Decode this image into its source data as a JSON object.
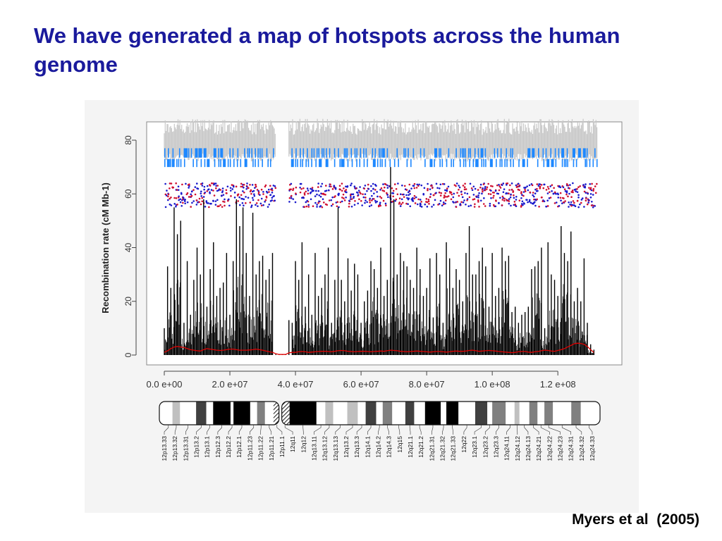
{
  "slide": {
    "title": "We have generated a map of hotspots across the human genome",
    "citation": "Myers et al  (2005)"
  },
  "chart_data": {
    "type": "line",
    "title": "",
    "xlabel": "",
    "ylabel": "Recombination rate (cM Mb-1)",
    "xlim": [
      0,
      132000000
    ],
    "ylim": [
      0,
      85
    ],
    "x_ticks": [
      0,
      20000000,
      40000000,
      60000000,
      80000000,
      100000000,
      120000000
    ],
    "x_tick_labels": [
      "0.0 e+00",
      "2.0 e+07",
      "4.0 e+07",
      "6.0 e+07",
      "8.0 e+07",
      "1.0 e+08",
      "1.2 e+08"
    ],
    "y_ticks": [
      0,
      20,
      40,
      60,
      80
    ],
    "y_tick_labels": [
      "0",
      "20",
      "40",
      "60",
      "80"
    ],
    "grid": false,
    "series": [
      {
        "color": "#000000",
        "x": [
          0,
          1000000,
          2000000,
          3000000,
          4000000,
          5000000,
          6000000,
          7000000,
          8000000,
          9000000,
          10000000,
          11000000,
          12000000,
          13000000,
          14000000,
          15000000,
          16000000,
          17000000,
          18000000,
          19000000,
          20000000,
          21000000,
          22000000,
          23000000,
          24000000,
          25000000,
          26000000,
          27000000,
          28000000,
          29000000,
          30000000,
          31000000,
          32000000,
          33000000,
          34000000,
          35000000,
          36000000,
          37000000,
          38000000,
          39000000,
          40000000,
          41000000,
          42000000,
          43000000,
          44000000,
          45000000,
          46000000,
          47000000,
          48000000,
          49000000,
          50000000,
          51000000,
          52000000,
          53000000,
          54000000,
          55000000,
          56000000,
          57000000,
          58000000,
          59000000,
          60000000,
          61000000,
          62000000,
          63000000,
          64000000,
          65000000,
          66000000,
          67000000,
          68000000,
          69000000,
          70000000,
          71000000,
          72000000,
          73000000,
          74000000,
          75000000,
          76000000,
          77000000,
          78000000,
          79000000,
          80000000,
          81000000,
          82000000,
          83000000,
          84000000,
          85000000,
          86000000,
          87000000,
          88000000,
          89000000,
          90000000,
          91000000,
          92000000,
          93000000,
          94000000,
          95000000,
          96000000,
          97000000,
          98000000,
          99000000,
          100000000,
          101000000,
          102000000,
          103000000,
          104000000,
          105000000,
          106000000,
          107000000,
          108000000,
          109000000,
          110000000,
          111000000,
          112000000,
          113000000,
          114000000,
          115000000,
          116000000,
          117000000,
          118000000,
          119000000,
          120000000,
          121000000,
          122000000,
          123000000,
          124000000,
          125000000,
          126000000,
          127000000,
          128000000,
          129000000,
          130000000,
          131000000
        ],
        "values": [
          10,
          33,
          25,
          55,
          45,
          50,
          12,
          35,
          15,
          28,
          40,
          30,
          58,
          18,
          32,
          42,
          22,
          25,
          27,
          38,
          15,
          35,
          58,
          48,
          55,
          38,
          22,
          53,
          30,
          35,
          37,
          28,
          32,
          38,
          0.3,
          0.3,
          0.3,
          0.3,
          13,
          12,
          35,
          28,
          42,
          18,
          30,
          15,
          38,
          22,
          25,
          30,
          40,
          12,
          28,
          55,
          28,
          20,
          36,
          24,
          34,
          30,
          12,
          20,
          24,
          35,
          32,
          25,
          40,
          22,
          28,
          70,
          58,
          30,
          38,
          35,
          33,
          28,
          25,
          40,
          32,
          22,
          25,
          36,
          14,
          38,
          30,
          12,
          42,
          36,
          25,
          32,
          28,
          20,
          38,
          48,
          30,
          30,
          35,
          40,
          33,
          18,
          38,
          22,
          25,
          40,
          35,
          37,
          16,
          18,
          12,
          15,
          16,
          18,
          32,
          33,
          35,
          40,
          10,
          42,
          30,
          28,
          22,
          48,
          38,
          35,
          46,
          20,
          25,
          20,
          36,
          12,
          4,
          2
        ]
      },
      {
        "color": "#e00000",
        "x": [
          0,
          1000000,
          2000000,
          3000000,
          4000000,
          5000000,
          6000000,
          7000000,
          8000000,
          9000000,
          10000000,
          11000000,
          12000000,
          13000000,
          14000000,
          15000000,
          16000000,
          17000000,
          18000000,
          19000000,
          20000000,
          21000000,
          22000000,
          23000000,
          24000000,
          25000000,
          26000000,
          27000000,
          28000000,
          29000000,
          30000000,
          31000000,
          32000000,
          33000000,
          34000000,
          35000000,
          36000000,
          37000000,
          38000000,
          39000000,
          40000000,
          41000000,
          42000000,
          43000000,
          44000000,
          45000000,
          46000000,
          47000000,
          48000000,
          49000000,
          50000000,
          51000000,
          52000000,
          53000000,
          54000000,
          55000000,
          56000000,
          57000000,
          58000000,
          59000000,
          60000000,
          61000000,
          62000000,
          63000000,
          64000000,
          65000000,
          66000000,
          67000000,
          68000000,
          69000000,
          70000000,
          71000000,
          72000000,
          73000000,
          74000000,
          75000000,
          76000000,
          77000000,
          78000000,
          79000000,
          80000000,
          81000000,
          82000000,
          83000000,
          84000000,
          85000000,
          86000000,
          87000000,
          88000000,
          89000000,
          90000000,
          91000000,
          92000000,
          93000000,
          94000000,
          95000000,
          96000000,
          97000000,
          98000000,
          99000000,
          100000000,
          101000000,
          102000000,
          103000000,
          104000000,
          105000000,
          106000000,
          107000000,
          108000000,
          109000000,
          110000000,
          111000000,
          112000000,
          113000000,
          114000000,
          115000000,
          116000000,
          117000000,
          118000000,
          119000000,
          120000000,
          121000000,
          122000000,
          123000000,
          124000000,
          125000000,
          126000000,
          127000000,
          128000000,
          129000000,
          130000000,
          131000000
        ],
        "values": [
          1.0,
          1.6,
          2.4,
          3.0,
          3.2,
          3.0,
          2.8,
          2.4,
          2.0,
          1.8,
          1.6,
          1.5,
          2.0,
          2.4,
          2.2,
          2.0,
          1.8,
          1.7,
          1.8,
          2.0,
          2.2,
          2.2,
          2.0,
          1.8,
          1.8,
          1.8,
          1.9,
          2.0,
          2.2,
          2.0,
          1.8,
          1.5,
          1.2,
          1.0,
          0.5,
          0.2,
          0.2,
          0.2,
          0.8,
          1.0,
          1.0,
          1.2,
          1.3,
          1.2,
          1.0,
          1.1,
          1.2,
          1.3,
          1.4,
          1.4,
          1.3,
          1.2,
          1.4,
          1.6,
          1.7,
          1.6,
          1.4,
          1.3,
          1.2,
          1.3,
          1.4,
          1.4,
          1.3,
          1.2,
          1.3,
          1.4,
          1.5,
          1.4,
          1.6,
          1.8,
          1.7,
          1.6,
          1.4,
          1.3,
          1.2,
          1.3,
          1.4,
          1.5,
          1.4,
          1.3,
          1.2,
          1.1,
          1.2,
          1.3,
          1.3,
          1.2,
          1.1,
          1.2,
          1.4,
          1.5,
          1.4,
          1.4,
          1.5,
          1.7,
          1.8,
          1.6,
          1.4,
          1.5,
          1.6,
          1.7,
          1.6,
          1.5,
          1.3,
          1.2,
          1.1,
          1.0,
          0.9,
          1.0,
          1.2,
          1.3,
          1.3,
          1.1,
          1.0,
          1.2,
          1.3,
          1.6,
          1.8,
          1.7,
          1.5,
          1.4,
          1.7,
          2.0,
          2.4,
          3.0,
          3.6,
          4.2,
          4.4,
          4.3,
          4.0,
          3.2,
          2.0,
          1.0
        ]
      }
    ],
    "annotations": [
      {
        "type": "band",
        "label": "",
        "y_range": [
          72,
          88
        ],
        "color": "#c8c8c8"
      },
      {
        "type": "tick-track",
        "label": "",
        "y_range": [
          70,
          77
        ],
        "color": "#1e88ff"
      },
      {
        "type": "scatter-track",
        "label": "",
        "y_range": [
          55,
          64
        ],
        "colors": [
          "#1a1acc",
          "#d01030"
        ]
      }
    ],
    "ideogram": {
      "bands": [
        {
          "name": "12p13.33",
          "start": 0,
          "end": 2500000,
          "stain": "gneg"
        },
        {
          "name": "12p13.32",
          "start": 2500000,
          "end": 4800000,
          "stain": "gpos25"
        },
        {
          "name": "12p13.31",
          "start": 4800000,
          "end": 9700000,
          "stain": "gneg"
        },
        {
          "name": "12p13.2",
          "start": 9700000,
          "end": 12800000,
          "stain": "gpos75"
        },
        {
          "name": "12p13.1",
          "start": 12800000,
          "end": 14900000,
          "stain": "gneg"
        },
        {
          "name": "12p12.3",
          "start": 14900000,
          "end": 20200000,
          "stain": "gpos100"
        },
        {
          "name": "12p12.2",
          "start": 20200000,
          "end": 21100000,
          "stain": "gneg"
        },
        {
          "name": "12p12.1",
          "start": 21100000,
          "end": 26200000,
          "stain": "gpos100"
        },
        {
          "name": "12p11.23",
          "start": 26200000,
          "end": 28300000,
          "stain": "gneg"
        },
        {
          "name": "12p11.22",
          "start": 28300000,
          "end": 30700000,
          "stain": "gpos50"
        },
        {
          "name": "12p11.21",
          "start": 30700000,
          "end": 33300000,
          "stain": "gneg"
        },
        {
          "name": "12p11.1",
          "start": 33300000,
          "end": 35400000,
          "stain": "acen"
        },
        {
          "name": "12q11",
          "start": 35400000,
          "end": 38200000,
          "stain": "stalk"
        },
        {
          "name": "12q12",
          "start": 38200000,
          "end": 46400000,
          "stain": "gpos100"
        },
        {
          "name": "12q13.11",
          "start": 46400000,
          "end": 49100000,
          "stain": "gneg"
        },
        {
          "name": "12q13.12",
          "start": 49100000,
          "end": 51500000,
          "stain": "gpos25"
        },
        {
          "name": "12q13.13",
          "start": 51500000,
          "end": 55800000,
          "stain": "gneg"
        },
        {
          "name": "12q13.2",
          "start": 55800000,
          "end": 59000000,
          "stain": "gpos25"
        },
        {
          "name": "12q13.3",
          "start": 59000000,
          "end": 61400000,
          "stain": "gneg"
        },
        {
          "name": "12q14.1",
          "start": 61400000,
          "end": 64600000,
          "stain": "gpos75"
        },
        {
          "name": "12q14.2",
          "start": 64600000,
          "end": 66600000,
          "stain": "gneg"
        },
        {
          "name": "12q14.3",
          "start": 66600000,
          "end": 69500000,
          "stain": "gpos50"
        },
        {
          "name": "12q15",
          "start": 69500000,
          "end": 73500000,
          "stain": "gneg"
        },
        {
          "name": "12q21.1",
          "start": 73500000,
          "end": 76200000,
          "stain": "gpos75"
        },
        {
          "name": "12q21.2",
          "start": 76200000,
          "end": 79500000,
          "stain": "gneg"
        },
        {
          "name": "12q21.31",
          "start": 79500000,
          "end": 84300000,
          "stain": "gpos100"
        },
        {
          "name": "12q21.32",
          "start": 84300000,
          "end": 86000000,
          "stain": "gneg"
        },
        {
          "name": "12q21.33",
          "start": 86000000,
          "end": 89700000,
          "stain": "gpos100"
        },
        {
          "name": "12q22",
          "start": 89700000,
          "end": 94800000,
          "stain": "gneg"
        },
        {
          "name": "12q23.1",
          "start": 94800000,
          "end": 98500000,
          "stain": "gpos75"
        },
        {
          "name": "12q23.2",
          "start": 98500000,
          "end": 100000000,
          "stain": "gneg"
        },
        {
          "name": "12q23.3",
          "start": 100000000,
          "end": 104100000,
          "stain": "gpos50"
        },
        {
          "name": "12q24.11",
          "start": 104100000,
          "end": 106800000,
          "stain": "gneg"
        },
        {
          "name": "12q24.12",
          "start": 106800000,
          "end": 108300000,
          "stain": "gpos25"
        },
        {
          "name": "12q24.13",
          "start": 108300000,
          "end": 111300000,
          "stain": "gneg"
        },
        {
          "name": "12q24.21",
          "start": 111300000,
          "end": 113800000,
          "stain": "gpos50"
        },
        {
          "name": "12q24.22",
          "start": 113800000,
          "end": 115900000,
          "stain": "gneg"
        },
        {
          "name": "12q24.23",
          "start": 115900000,
          "end": 118500000,
          "stain": "gpos50"
        },
        {
          "name": "12q24.31",
          "start": 118500000,
          "end": 124100000,
          "stain": "gneg"
        },
        {
          "name": "12q24.32",
          "start": 124100000,
          "end": 127000000,
          "stain": "gpos50"
        },
        {
          "name": "12q24.33",
          "start": 127000000,
          "end": 132300000,
          "stain": "gneg"
        }
      ]
    }
  }
}
